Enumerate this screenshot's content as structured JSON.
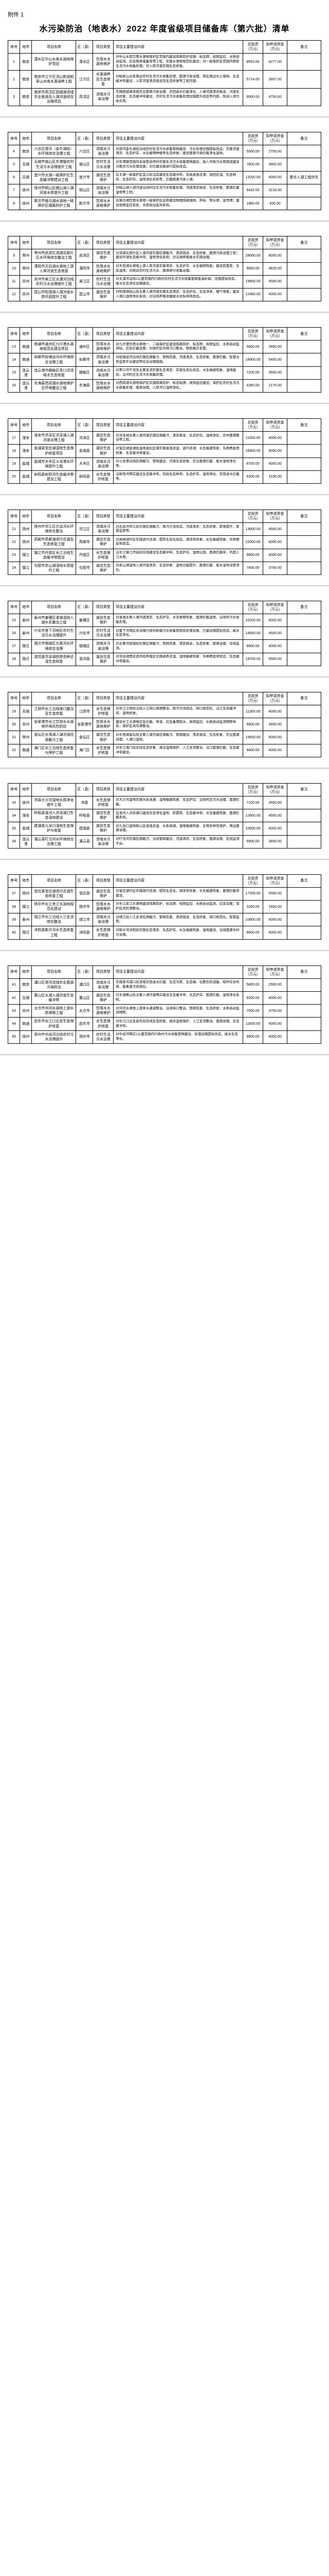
{
  "attachment_label": "附件 1",
  "title": "水污染防治（地表水）2022 年度省级项目储备库（第六批）清单",
  "headers": {
    "seq": "序号",
    "city": "地市",
    "name": "项目名称",
    "county": "区（县）",
    "type": "项目类型",
    "content": "项目主要建设内容",
    "total": "总投资（万元）",
    "apply": "拟申请资金（万元）",
    "remark": "备注"
  },
  "pages": [
    {
      "show_header": true,
      "rows": [
        {
          "seq": "1",
          "city": "南京",
          "name": "溧水区中山水库水源地保护项目",
          "county": "溧水区",
          "type": "饮用水水源地保护",
          "content": "对中山水库饮用水源地保护区范围内建设隔离防护设施、标志牌、视频监控、水质自动监测、应急物资储备库等工程，实施水源地规范化建设；对一级保护区范围内居民生活污水收集处理；对入库河道实施生态修复。",
          "total": "8553.00",
          "apply": "4277.00",
          "remark": ""
        },
        {
          "seq": "2",
          "city": "南京",
          "name": "南京市江宁区汤山街道柏家山水库水源涵养工程",
          "county": "江宁区",
          "type": "水源涵养及生态修复",
          "content": "对柏家山水库周边农村生活污水收集处理、面源污染治理、库区周边水土保持、生态缓冲带建设、入库河道清淤疏浚及生态修复等工程内容。",
          "total": "5714.00",
          "apply": "2857.00",
          "remark": ""
        },
        {
          "seq": "3",
          "city": "南京",
          "name": "南京市高淳区固城湖流域农业面源及入湖河道综合治理项目",
          "county": "高淳区",
          "type": "流域水污染治理",
          "content": "实施固城湖流域农业面源污染治理、农田退水拦截净化、入湖河道清淤疏浚、河道生态修复、生态缓冲带建设、农村生活污水收集处理设施提升改造等内容，削减入湖污染负荷。",
          "total": "9500.00",
          "apply": "4750.00",
          "remark": ""
        }
      ]
    },
    {
      "rows": [
        {
          "seq": "4",
          "city": "南京",
          "name": "六合区滁河（金牛湖段）水环境综合治理工程",
          "county": "六合区",
          "type": "流域水污染治理",
          "content": "对滁河金牛湖段沿线农村生活污水收集管网建设、污水处理设施提标改造；实施河道清淤、生态护岸、水生植物种植等生态修复；建设面源污染拦截净化湿地。",
          "total": "5500.00",
          "apply": "2750.00",
          "remark": ""
        },
        {
          "seq": "5",
          "city": "无锡",
          "name": "无锡市锡山区东港镇农村生活污水治理提升工程",
          "county": "锡山区",
          "type": "农村生活污水治理",
          "content": "对东港镇范围内未接管自然村实施生活污水收集管网建设，接入市政污水管网或建设分散式污水处理设施；对已建设施进行提标改造。",
          "total": "7800.00",
          "apply": "3900.00",
          "remark": ""
        },
        {
          "seq": "6",
          "city": "无锡",
          "name": "宜兴市太湖一级保护区生态缓冲带建设工程",
          "county": "宜兴市",
          "type": "湖泊生态保护",
          "content": "在太湖一级保护区宜兴段沿岸建设生态缓冲带，包括退渔还湖、退田还湿、生态林带、生态护岸、湿地净化系统等，拦截面源污染入湖。",
          "total": "13200.00",
          "apply": "4000.00",
          "remark": "重点入湖工程优先"
        },
        {
          "seq": "7",
          "city": "徐州",
          "name": "徐州市铜山区微山湖入湖河道水质提升工程",
          "county": "铜山区",
          "type": "流域水污染治理",
          "content": "对微山湖入湖河道沿线村庄生活污水收集处理、河道清淤疏浚、生态修复、面源拦截湿地等工程。",
          "total": "6432.00",
          "apply": "3216.00",
          "remark": ""
        },
        {
          "seq": "8",
          "city": "徐州",
          "name": "新沂市骆马湖水源地一级保护区隔离防护工程",
          "county": "新沂市",
          "type": "饮用水水源地保护",
          "content": "在骆马湖饮用水源地一级保护区边界建设物理隔离围网、界标、警示牌、宣传牌；建设视频监控系统、水质自动监测系统。",
          "total": "1860.00",
          "apply": "930.00",
          "remark": ""
        }
      ]
    },
    {
      "rows": [
        {
          "seq": "9",
          "city": "常州",
          "name": "常州市武进区滆湖北部片区水环境综合整治工程",
          "county": "武进区",
          "type": "湖泊生态保护",
          "content": "对滆湖北部片区入湖河道实施控源截污、清淤疏浚、生态修复、面源污染治理工程；建设环湖生态缓冲带、湿地净化系统；对沿湖养殖尾水实施治理。",
          "total": "28000.00",
          "apply": "8000.00",
          "remark": ""
        },
        {
          "seq": "10",
          "city": "常州",
          "name": "溧阳市天目湖水源地上游入库河道生态修复",
          "county": "溧阳市",
          "type": "饮用水水源地保护",
          "content": "对天目湖水源地上游入库河道实施清淤、生态护岸、水生植物恢复；建设前置库、生态湿地；对周边农村生活污水、面源进行收集治理。",
          "total": "9650.00",
          "apply": "4825.00",
          "remark": ""
        },
        {
          "seq": "11",
          "city": "苏州",
          "name": "苏州市吴江区太浦河沿线农村污水治理提升工程",
          "county": "吴江区",
          "type": "农村生活污水治理",
          "content": "对太浦河沿线1公里范围内行政村农村生活污水收集管网查漏补缺、设施提标改造、尾水生态净化设施建设。",
          "total": "15800.00",
          "apply": "4500.00",
          "remark": ""
        },
        {
          "seq": "12",
          "city": "苏州",
          "name": "昆山市阳澄湖入湖河道水质巩固提升工程",
          "county": "昆山市",
          "type": "湖泊生态保护",
          "content": "对阳澄湖昆山段主要入湖河道实施生态清淤、生态护岸、生态浮床、曝气增氧；建设入湖口湿地净化系统；对沿线养殖池塘尾水达标排放改造。",
          "total": "12460.00",
          "apply": "4000.00",
          "remark": ""
        }
      ]
    },
    {
      "rows": [
        {
          "seq": "13",
          "city": "南通",
          "name": "南通市通州区九圩港水源地规范化建设项目",
          "county": "通州区",
          "type": "饮用水水源地保护",
          "content": "对九圩港饮用水源地一、二级保护区建设隔离防护、标志牌、视频监控、水质自动监测站、应急拦截设施；对保护区内排污口整治、居民搬迁安置。",
          "total": "5600.00",
          "apply": "2800.00",
          "remark": ""
        },
        {
          "seq": "14",
          "city": "南通",
          "name": "如皋市如海运河水环境综合治理工程",
          "county": "如皋市",
          "type": "流域水污染治理",
          "content": "对如海运河沿线实施控源截污、管网完善、河道清淤、生态修复、面源拦截、智慧水务监管平台建设等综合治理措施。",
          "total": "18900.00",
          "apply": "5400.00",
          "remark": ""
        },
        {
          "seq": "15",
          "city": "连云港",
          "name": "连云港市赣榆区青口河流域水生态修复",
          "county": "赣榆区",
          "type": "流域水污染治理",
          "content": "对青口河干流及主要支流实施生态清淤、岸坡生态化改造、水生植被恢复、湿地建设；沿河村庄生活污水收集处理。",
          "total": "7200.00",
          "apply": "3600.00",
          "remark": ""
        },
        {
          "seq": "16",
          "city": "连云港",
          "name": "东海县西双湖水源地保护区环境整治工程",
          "county": "东海县",
          "type": "饮用水水源地保护",
          "content": "对西双湖水源地保护区实施隔离防护、标志标牌、视频监控建设；保护区农村生活污水收集处理、面源治理、入库河口湿地净化。",
          "total": "4350.00",
          "apply": "2175.00",
          "remark": ""
        }
      ]
    },
    {
      "rows": [
        {
          "seq": "17",
          "city": "淮安",
          "name": "淮安市洪泽区洪泽湖入湖河道治理工程",
          "county": "洪泽区",
          "type": "湖泊生态保护",
          "content": "对洪泽湖主要入湖河道实施控源截污、清淤疏浚、生态护岸、湿地净化、农村面源整治等工程。",
          "total": "11500.00",
          "apply": "4000.00",
          "remark": ""
        },
        {
          "seq": "18",
          "city": "淮安",
          "name": "金湖县宝应湖湿地生态保护修复项目",
          "county": "金湖县",
          "type": "湖泊生态保护",
          "content": "对宝应湖金湖段湿地退化区域实施退渔还湿、退圩还湖、水生植被恢复、鸟类栖息地修复、生态缓冲带建设。",
          "total": "16400.00",
          "apply": "5000.00",
          "remark": ""
        },
        {
          "seq": "19",
          "city": "盐城",
          "name": "盐城市大丰区斗龙港水环境提升工程",
          "county": "大丰区",
          "type": "流域水污染治理",
          "content": "对斗龙港沿线控源截污、管网建设、河道生态修复、农业面源拦截、尾水湿地净化等。",
          "total": "8700.00",
          "apply": "4000.00",
          "remark": ""
        },
        {
          "seq": "20",
          "city": "盐城",
          "name": "射阳县射阳河生态缓冲带建设工程",
          "county": "射阳县",
          "type": "水生态保护修复",
          "content": "沿射阳河两岸建设生态缓冲带，包括生态林带、生态护岸、湿地净化、农田退水拦截等。",
          "total": "6300.00",
          "apply": "3150.00",
          "remark": ""
        }
      ]
    },
    {
      "rows": [
        {
          "seq": "21",
          "city": "扬州",
          "name": "扬州市邗江区古运河水环境综合整治",
          "county": "邗江区",
          "type": "流域水污染治理",
          "content": "对古运河邗江段实施控源截污、雨污分流改造、河道清淤、生态修复、景观提升、智慧监管等。",
          "total": "13600.00",
          "apply": "4500.00",
          "remark": ""
        },
        {
          "seq": "22",
          "city": "扬州",
          "name": "高邮市高邮湖退圩还湖及生态修复工程",
          "county": "高邮市",
          "type": "湖泊生态保护",
          "content": "对高邮湖圩区实施退圩还湖、堤防生态化改造、湖滨带修复、水生植被恢复、鸟类栖息地营造。",
          "total": "22000.00",
          "apply": "6000.00",
          "remark": ""
        },
        {
          "seq": "23",
          "city": "镇江",
          "name": "镇江市丹徒区长江沿线生态缓冲带建设",
          "county": "丹徒区",
          "type": "水生态保护修复",
          "content": "沿长江镇江丹徒段岸线建设生态缓冲带、生态护岸、湿地公园、面源拦截带，巩固入江水质。",
          "total": "9800.00",
          "apply": "4000.00",
          "remark": ""
        },
        {
          "seq": "24",
          "city": "镇江",
          "name": "句容市赤山湖湿地水质提升工程",
          "county": "句容市",
          "type": "湖泊生态保护",
          "content": "对赤山湖湿地入湖河道清淤、生态修复、湿地功能提升、面源拦截、尾水湿地深度净化。",
          "total": "7400.00",
          "apply": "3700.00",
          "remark": ""
        }
      ]
    },
    {
      "rows": [
        {
          "seq": "25",
          "city": "泰州",
          "name": "泰州市姜堰区溱湖湿地入湖水系整治工程",
          "county": "姜堰区",
          "type": "湖泊生态保护",
          "content": "对溱湖主要入湖河道清淤、生态护岸、水生植物恢复、面源拦截湿地、沿线村污水收集处理。",
          "total": "10200.00",
          "apply": "4000.00",
          "remark": ""
        },
        {
          "seq": "26",
          "city": "泰州",
          "name": "兴化市里下河地区农村生活污水治理提升",
          "county": "兴化市",
          "type": "农村生活污水治理",
          "content": "对里下河地区未治理行政村新建污水收集管网及处理设施、已建设施提标改造、尾水生态净化。",
          "total": "14500.00",
          "apply": "4500.00",
          "remark": ""
        },
        {
          "seq": "27",
          "city": "宿迁",
          "name": "宿迁市宿城区古黄河水环境综合治理",
          "county": "宿城区",
          "type": "流域水污染治理",
          "content": "对古黄河宿城段实施控源截污、管网完善、清淤疏浚、生态修复、面源治理、在线监测。",
          "total": "8900.00",
          "apply": "4000.00",
          "remark": ""
        },
        {
          "seq": "28",
          "city": "宿迁",
          "name": "泗洪县洪泽湖西岸退养还湿生态修复",
          "county": "泗洪县",
          "type": "湖泊生态保护",
          "content": "对洪泽湖西岸泗洪段养殖区实施退养还湿、湿地植被恢复、鸟类栖息地营造、生态缓冲带建设。",
          "total": "18700.00",
          "apply": "5500.00",
          "remark": ""
        }
      ]
    },
    {
      "rows": [
        {
          "seq": "29",
          "city": "无锡",
          "name": "江阴市长江沿线排口整治及生态修复",
          "county": "江阴市",
          "type": "水生态保护修复",
          "content": "对长江江阴段沿线入江排口溯源整治、雨污分流改造、排口规范化、沿江生态缓冲带、湿地修复。",
          "total": "11300.00",
          "apply": "4000.00",
          "remark": ""
        },
        {
          "seq": "30",
          "city": "苏州",
          "name": "张家港市长江饮用水水源地环境风险防控",
          "county": "张家港市",
          "type": "饮用水水源地保护",
          "content": "建设长江水源地应急拦截、导流、应急备用取水、视频监控、水质自动监测预警体系；保护区风险源整治。",
          "total": "6800.00",
          "apply": "3400.00",
          "remark": ""
        },
        {
          "seq": "31",
          "city": "常州",
          "name": "金坛区长荡湖入湖河道控源截污工程",
          "county": "金坛区",
          "type": "湖泊生态保护",
          "content": "对长荡湖金坛段主要入湖河道控源截污、管网建设、清淤疏浚、生态修复、农业面源治理、入湖口湿地。",
          "total": "15600.00",
          "apply": "5000.00",
          "remark": ""
        },
        {
          "seq": "32",
          "city": "南通",
          "name": "海门区长江沿线生态修复与保护工程",
          "county": "海门区",
          "type": "水生态保护修复",
          "content": "对长江海门段岸线生态修复、滩涂湿地保护、入江支流整治、沿江面源拦截、生态缓冲带建设。",
          "total": "9400.00",
          "apply": "4000.00",
          "remark": ""
        }
      ]
    },
    {
      "rows": [
        {
          "seq": "33",
          "city": "徐州",
          "name": "沛县大沙河湿地水质净化提升工程",
          "county": "沛县",
          "type": "水生态保护修复",
          "content": "对大沙河湿地实施水系连通、湿地植被恢复、生态护岸、沿线村庄污水治理、面源拦截。",
          "total": "7100.00",
          "apply": "3550.00",
          "remark": ""
        },
        {
          "seq": "34",
          "city": "淮安",
          "name": "盱眙县淮河入洪泽湖口生态湿地建设",
          "county": "盱眙县",
          "type": "湖泊生态保护",
          "content": "在淮河入洪泽湖口建设生态净化湿地、前置库、生态缓冲带、水生植被恢复、面源拦截系统。",
          "total": "12800.00",
          "apply": "4500.00",
          "remark": ""
        },
        {
          "seq": "35",
          "city": "盐城",
          "name": "建湖县九龙口湿地生态保护与修复",
          "county": "建湖县",
          "type": "湖泊生态保护",
          "content": "对九龙口湿地核心区退渔还湿、水系疏通、湿地植被恢复、生物多样性保护、周边面源治理。",
          "total": "10500.00",
          "apply": "4000.00",
          "remark": ""
        },
        {
          "seq": "36",
          "city": "连云港",
          "name": "灌云县叮当河水环境综合治理工程",
          "county": "灌云县",
          "type": "流域水污染治理",
          "content": "对叮当河实施控源截污、沿线管网建设、河道清淤、生态修复、面源治理、在线监测平台。",
          "total": "6900.00",
          "apply": "3450.00",
          "remark": ""
        }
      ]
    },
    {
      "rows": [
        {
          "seq": "37",
          "city": "扬州",
          "name": "宝应县宝应湖退圩还湖生态修复工程",
          "county": "宝应县",
          "type": "湖泊生态保护",
          "content": "对宝应湖圩区实施退圩还湖、堤防生态化、湖滨带修复、水生植被恢复、面源拦截带建设。",
          "total": "17200.00",
          "apply": "5500.00",
          "remark": ""
        },
        {
          "seq": "38",
          "city": "镇江",
          "name": "扬中市长江夹江水源地规范化建设",
          "county": "扬中市",
          "type": "饮用水水源地保护",
          "content": "对长江夹江水源地建设隔离防护、标志牌、视频监控、水质自动监测、应急设施；保护区风险源整治。",
          "total": "3200.00",
          "apply": "1600.00",
          "remark": ""
        },
        {
          "seq": "39",
          "city": "泰州",
          "name": "靖江市长江沿线入江支流综合整治",
          "county": "靖江市",
          "type": "流域水污染治理",
          "content": "对靖江段入江支流控源截污、管网完善、清淤疏浚、生态修复、排口规范化、智慧监管。",
          "total": "10800.00",
          "apply": "4000.00",
          "remark": ""
        },
        {
          "seq": "40",
          "city": "宿迁",
          "name": "沭阳县新沂河水生态修复工程",
          "county": "沭阳县",
          "type": "水生态保护修复",
          "content": "对新沂河沭阳段实施生态清淤、生态护岸、水生植被恢复、湿地建设、沿线面源与村污治理。",
          "total": "8600.00",
          "apply": "4000.00",
          "remark": ""
        }
      ]
    },
    {
      "rows": [
        {
          "seq": "41",
          "city": "南京",
          "name": "浦口区滁河流域农业面源污染防治",
          "county": "浦口区",
          "type": "流域水污染治理",
          "content": "实施滁河浦口段流域农田退水拦截、生态沟渠、生态塘、化肥农药减量、秸秆综合利用、畜禽粪污资源化。",
          "total": "5800.00",
          "apply": "2900.00",
          "remark": ""
        },
        {
          "seq": "42",
          "city": "无锡",
          "name": "惠山区太湖入湖河道生态缓冲带",
          "county": "惠山区",
          "type": "湖泊生态保护",
          "content": "对太湖惠山段主要入湖河道两岸建设生态缓冲带、生态护岸、面源拦截、湿地净化系统。",
          "total": "9200.00",
          "apply": "4000.00",
          "remark": ""
        },
        {
          "seq": "43",
          "city": "苏州",
          "name": "太仓市浏河水源地上游水质保障工程",
          "county": "太仓市",
          "type": "饮用水水源地保护",
          "content": "对浏河水源地上游来水通道整治、沿线排口整治、管网完善、生态修复、水质自动监测预警。",
          "total": "7500.00",
          "apply": "3750.00",
          "remark": ""
        },
        {
          "seq": "44",
          "city": "南通",
          "name": "启东市长江口北支生态保护修复",
          "county": "启东市",
          "type": "水生态保护修复",
          "content": "对长江口北支启东段岸线生态修复、滩涂湿地保护、入江支流整治、面源治理、生态缓冲带。",
          "total": "11600.00",
          "apply": "4000.00",
          "remark": ""
        },
        {
          "seq": "45",
          "city": "徐州",
          "name": "邳州市中运河沿线农村污水治理提升",
          "county": "邳州市",
          "type": "农村生活污水治理",
          "content": "对中运河两岸1公里范围内行政村污水收集管网建设、处理设施提标改造、尾水生态净化。",
          "total": "9900.00",
          "apply": "4000.00",
          "remark": ""
        }
      ]
    }
  ]
}
